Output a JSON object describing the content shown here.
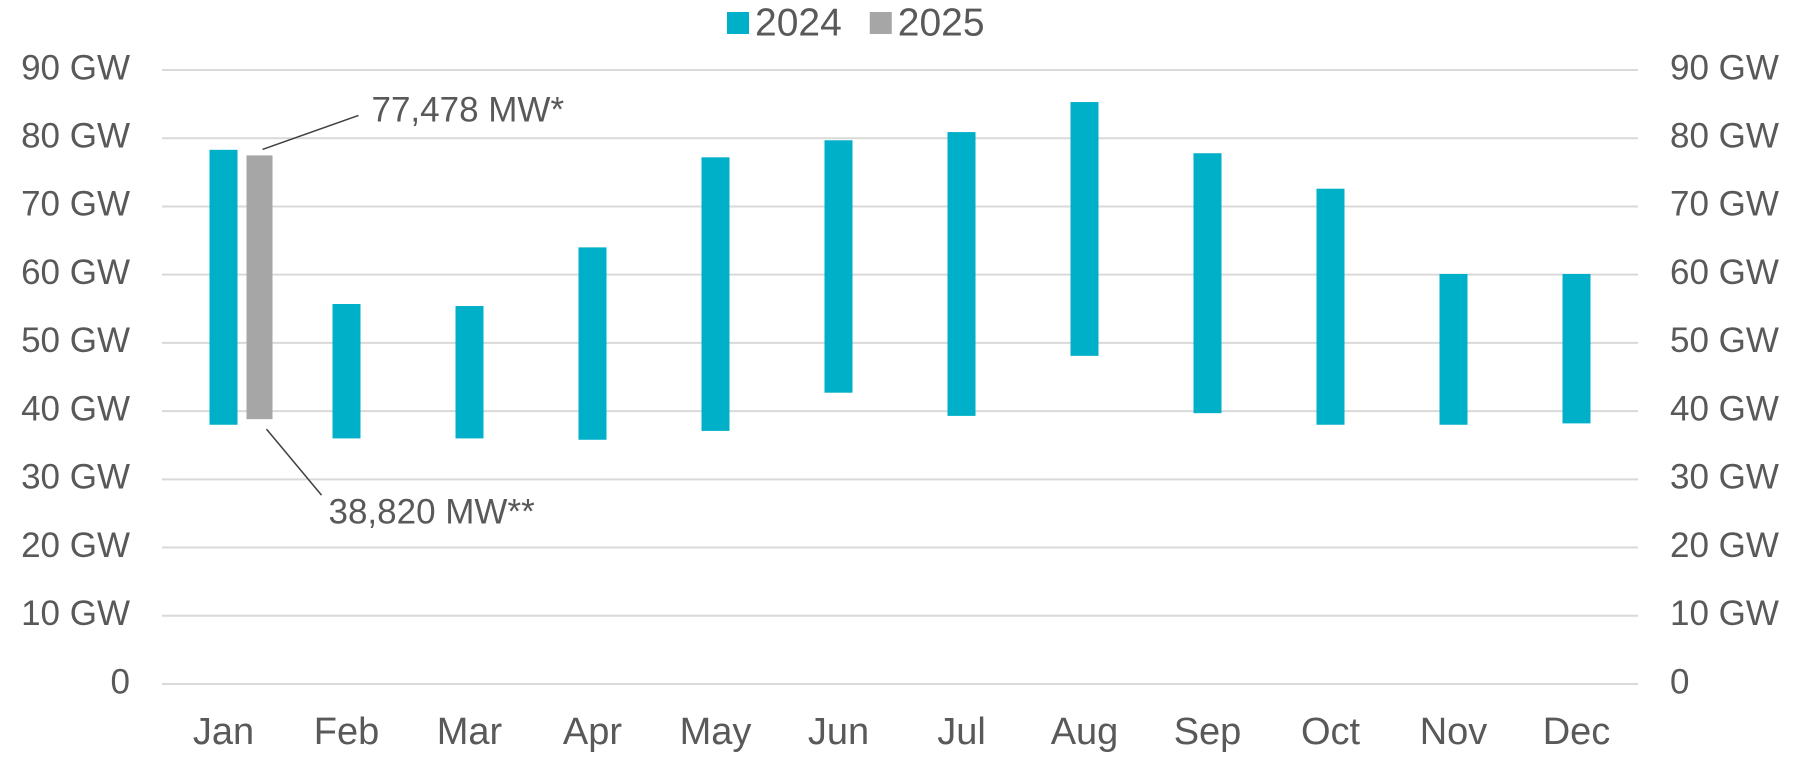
{
  "chart_data": {
    "type": "range-bar",
    "categories": [
      "Jan",
      "Feb",
      "Mar",
      "Apr",
      "May",
      "Jun",
      "Jul",
      "Aug",
      "Sep",
      "Oct",
      "Nov",
      "Dec"
    ],
    "series": [
      {
        "name": "2024",
        "color": "#00afc8",
        "low": [
          38.0,
          36.0,
          36.0,
          35.8,
          37.1,
          42.7,
          39.3,
          48.1,
          39.7,
          38.0,
          38.0,
          38.2
        ],
        "high": [
          78.3,
          55.7,
          55.4,
          64.0,
          77.2,
          79.7,
          80.9,
          85.3,
          77.8,
          72.6,
          60.1,
          60.1
        ]
      },
      {
        "name": "2025",
        "color": "#a6a6a6",
        "low": [
          38.82,
          null,
          null,
          null,
          null,
          null,
          null,
          null,
          null,
          null,
          null,
          null
        ],
        "high": [
          77.478,
          null,
          null,
          null,
          null,
          null,
          null,
          null,
          null,
          null,
          null,
          null
        ],
        "low_labels": [
          "38,820 MW**",
          null,
          null,
          null,
          null,
          null,
          null,
          null,
          null,
          null,
          null,
          null
        ],
        "high_labels": [
          "77,478 MW*",
          null,
          null,
          null,
          null,
          null,
          null,
          null,
          null,
          null,
          null,
          null
        ]
      }
    ],
    "ylim": [
      0,
      90
    ],
    "yticks": [
      0,
      {
        "value": 10,
        "label": "10 GW"
      },
      {
        "value": 20,
        "label": "20 GW"
      },
      {
        "value": 30,
        "label": "30 GW"
      },
      {
        "value": 40,
        "label": "40 GW"
      },
      {
        "value": 50,
        "label": "50 GW"
      },
      {
        "value": 60,
        "label": "60 GW"
      },
      {
        "value": 70,
        "label": "70 GW"
      },
      {
        "value": 80,
        "label": "80 GW"
      },
      {
        "value": 90,
        "label": "90 GW"
      }
    ],
    "y2lim": [
      0,
      90
    ],
    "y2ticks": [
      0,
      {
        "value": 10,
        "label": "10 GW"
      },
      {
        "value": 20,
        "label": "20 GW"
      },
      {
        "value": 30,
        "label": "30 GW"
      },
      {
        "value": 40,
        "label": "40 GW"
      },
      {
        "value": 50,
        "label": "50 GW"
      },
      {
        "value": 60,
        "label": "60 GW"
      },
      {
        "value": 70,
        "label": "70 GW"
      },
      {
        "value": 80,
        "label": "80 GW"
      },
      {
        "value": 90,
        "label": "90 GW"
      }
    ],
    "grid": true,
    "legend": "top"
  }
}
